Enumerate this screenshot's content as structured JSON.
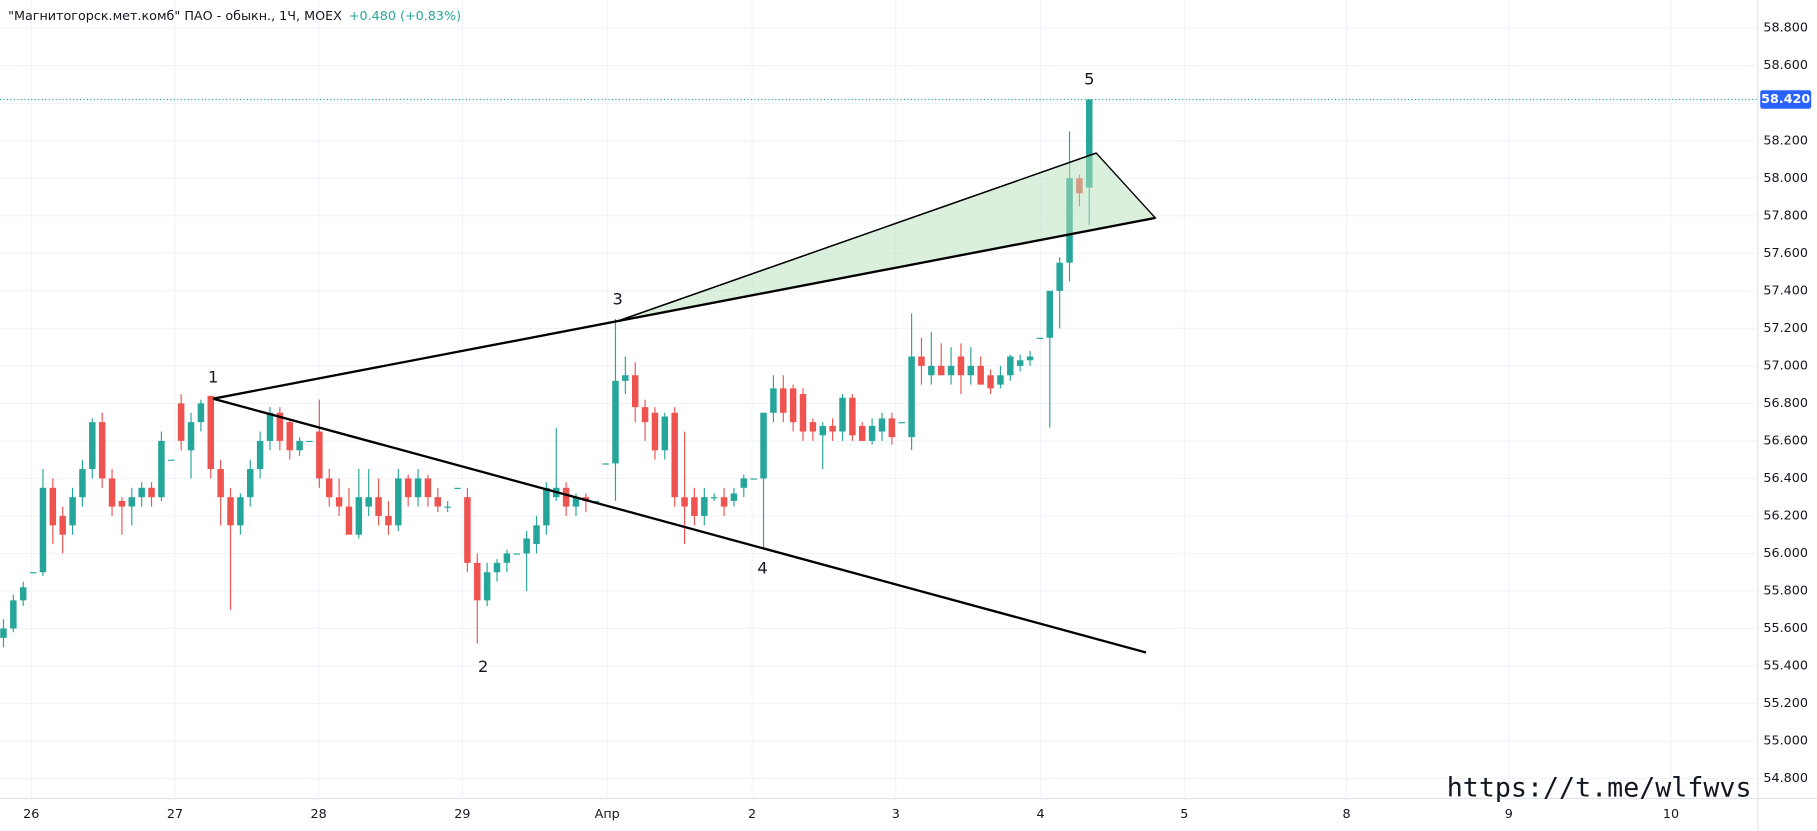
{
  "chart_data": {
    "type": "candlestick",
    "title": "\"Магнитогорск.мет.комб\" ПАО - обыкн., 1Ч, MOEX",
    "change_label": "+0.480 (+0.83%)",
    "last_price": {
      "value": 58.42,
      "label": "58.420"
    },
    "up_color": "#26a69a",
    "down_color": "#ef5350",
    "categories": [
      "26",
      "27",
      "28",
      "29",
      "Апр",
      "2",
      "3",
      "4",
      "5",
      "8",
      "9",
      "10"
    ],
    "wave_labels": [
      "1",
      "2",
      "3",
      "4",
      "5"
    ],
    "watermark": "https://t.me/wlfwvs",
    "ylim": [
      54.7,
      58.95
    ],
    "yticks": [
      {
        "value": 54.8,
        "label": "54.800"
      },
      {
        "value": 55.0,
        "label": "55.000"
      },
      {
        "value": 55.2,
        "label": "55.200"
      },
      {
        "value": 55.4,
        "label": "55.400"
      },
      {
        "value": 55.6,
        "label": "55.600"
      },
      {
        "value": 55.8,
        "label": "55.800"
      },
      {
        "value": 56.0,
        "label": "56.000"
      },
      {
        "value": 56.2,
        "label": "56.200"
      },
      {
        "value": 56.4,
        "label": "56.400"
      },
      {
        "value": 56.6,
        "label": "56.600"
      },
      {
        "value": 56.8,
        "label": "56.800"
      },
      {
        "value": 57.0,
        "label": "57.000"
      },
      {
        "value": 57.2,
        "label": "57.200"
      },
      {
        "value": 57.4,
        "label": "57.400"
      },
      {
        "value": 57.6,
        "label": "57.600"
      },
      {
        "value": 57.8,
        "label": "57.800"
      },
      {
        "value": 58.0,
        "label": "58.000"
      },
      {
        "value": 58.2,
        "label": "58.200"
      },
      {
        "value": 58.4,
        "label": "58.400"
      },
      {
        "value": 58.6,
        "label": "58.600"
      },
      {
        "value": 58.8,
        "label": "58.800"
      }
    ],
    "grid": true,
    "ohlc": [
      [
        55.55,
        55.65,
        55.5,
        55.6
      ],
      [
        55.6,
        55.78,
        55.58,
        55.75
      ],
      [
        55.75,
        55.85,
        55.72,
        55.82
      ],
      [
        55.9,
        55.9,
        55.9,
        55.9
      ],
      [
        55.9,
        56.45,
        55.88,
        56.35
      ],
      [
        56.35,
        56.4,
        56.05,
        56.15
      ],
      [
        56.2,
        56.25,
        56.0,
        56.1
      ],
      [
        56.15,
        56.35,
        56.1,
        56.3
      ],
      [
        56.3,
        56.5,
        56.25,
        56.45
      ],
      [
        56.45,
        56.72,
        56.4,
        56.7
      ],
      [
        56.7,
        56.75,
        56.35,
        56.4
      ],
      [
        56.4,
        56.45,
        56.2,
        56.25
      ],
      [
        56.28,
        56.3,
        56.1,
        56.25
      ],
      [
        56.25,
        56.35,
        56.15,
        56.3
      ],
      [
        56.3,
        56.38,
        56.25,
        56.35
      ],
      [
        56.35,
        56.38,
        56.25,
        56.3
      ],
      [
        56.3,
        56.65,
        56.28,
        56.6
      ],
      [
        56.5,
        56.5,
        56.5,
        56.5
      ],
      [
        56.8,
        56.85,
        56.55,
        56.6
      ],
      [
        56.55,
        56.75,
        56.4,
        56.7
      ],
      [
        56.7,
        56.82,
        56.65,
        56.8
      ],
      [
        56.84,
        56.84,
        56.4,
        56.45
      ],
      [
        56.45,
        56.5,
        56.15,
        56.3
      ],
      [
        56.3,
        56.35,
        55.7,
        56.15
      ],
      [
        56.15,
        56.32,
        56.1,
        56.3
      ],
      [
        56.3,
        56.5,
        56.25,
        56.45
      ],
      [
        56.45,
        56.65,
        56.4,
        56.6
      ],
      [
        56.6,
        56.78,
        56.55,
        56.75
      ],
      [
        56.75,
        56.78,
        56.55,
        56.6
      ],
      [
        56.7,
        56.72,
        56.5,
        56.55
      ],
      [
        56.55,
        56.62,
        56.52,
        56.6
      ],
      [
        56.6,
        56.6,
        56.6,
        56.6
      ],
      [
        56.65,
        56.82,
        56.35,
        56.4
      ],
      [
        56.4,
        56.45,
        56.25,
        56.3
      ],
      [
        56.3,
        56.4,
        56.2,
        56.25
      ],
      [
        56.25,
        56.35,
        56.1,
        56.1
      ],
      [
        56.1,
        56.45,
        56.08,
        56.3
      ],
      [
        56.25,
        56.45,
        56.2,
        56.3
      ],
      [
        56.3,
        56.4,
        56.15,
        56.2
      ],
      [
        56.2,
        56.28,
        56.1,
        56.15
      ],
      [
        56.15,
        56.45,
        56.12,
        56.4
      ],
      [
        56.4,
        56.42,
        56.25,
        56.3
      ],
      [
        56.3,
        56.45,
        56.25,
        56.4
      ],
      [
        56.4,
        56.42,
        56.25,
        56.3
      ],
      [
        56.3,
        56.35,
        56.22,
        56.25
      ],
      [
        56.25,
        56.28,
        56.22,
        56.25
      ],
      [
        56.35,
        56.35,
        56.35,
        56.35
      ],
      [
        56.3,
        56.35,
        55.9,
        55.95
      ],
      [
        55.95,
        56.0,
        55.52,
        55.75
      ],
      [
        55.75,
        55.95,
        55.72,
        55.9
      ],
      [
        55.9,
        55.97,
        55.85,
        55.95
      ],
      [
        55.95,
        56.02,
        55.9,
        56.0
      ],
      [
        56.0,
        56.0,
        56.0,
        56.0
      ],
      [
        56.0,
        56.12,
        55.8,
        56.08
      ],
      [
        56.05,
        56.2,
        56.0,
        56.15
      ],
      [
        56.15,
        56.38,
        56.1,
        56.35
      ],
      [
        56.3,
        56.67,
        56.28,
        56.35
      ],
      [
        56.35,
        56.38,
        56.2,
        56.25
      ],
      [
        56.25,
        56.32,
        56.2,
        56.3
      ],
      [
        56.3,
        56.32,
        56.22,
        56.28
      ],
      [
        56.28,
        56.28,
        56.28,
        56.28
      ],
      [
        56.48,
        56.48,
        56.48,
        56.48
      ],
      [
        56.48,
        57.25,
        56.28,
        56.92
      ],
      [
        56.92,
        57.05,
        56.85,
        56.95
      ],
      [
        56.95,
        57.02,
        56.7,
        56.78
      ],
      [
        56.78,
        56.82,
        56.6,
        56.7
      ],
      [
        56.75,
        56.78,
        56.5,
        56.55
      ],
      [
        56.55,
        56.75,
        56.5,
        56.73
      ],
      [
        56.75,
        56.78,
        56.25,
        56.3
      ],
      [
        56.3,
        56.65,
        56.05,
        56.25
      ],
      [
        56.3,
        56.35,
        56.15,
        56.2
      ],
      [
        56.2,
        56.35,
        56.15,
        56.3
      ],
      [
        56.3,
        56.32,
        56.28,
        56.3
      ],
      [
        56.3,
        56.35,
        56.2,
        56.25
      ],
      [
        56.28,
        56.35,
        56.25,
        56.32
      ],
      [
        56.35,
        56.42,
        56.3,
        56.4
      ],
      [
        56.4,
        56.4,
        56.4,
        56.4
      ],
      [
        56.4,
        56.75,
        56.03,
        56.75
      ],
      [
        56.75,
        56.95,
        56.7,
        56.88
      ],
      [
        56.88,
        56.95,
        56.7,
        56.75
      ],
      [
        56.88,
        56.9,
        56.65,
        56.7
      ],
      [
        56.85,
        56.88,
        56.6,
        56.65
      ],
      [
        56.7,
        56.72,
        56.6,
        56.65
      ],
      [
        56.63,
        56.7,
        56.45,
        56.68
      ],
      [
        56.68,
        56.72,
        56.6,
        56.65
      ],
      [
        56.65,
        56.85,
        56.6,
        56.83
      ],
      [
        56.83,
        56.85,
        56.6,
        56.63
      ],
      [
        56.68,
        56.7,
        56.6,
        56.6
      ],
      [
        56.6,
        56.72,
        56.58,
        56.68
      ],
      [
        56.65,
        56.75,
        56.6,
        56.72
      ],
      [
        56.72,
        56.75,
        56.58,
        56.62
      ],
      [
        56.7,
        56.7,
        56.7,
        56.7
      ],
      [
        56.62,
        57.28,
        56.55,
        57.05
      ],
      [
        57.05,
        57.15,
        56.9,
        57.0
      ],
      [
        56.95,
        57.18,
        56.9,
        57.0
      ],
      [
        57.0,
        57.12,
        56.95,
        56.95
      ],
      [
        56.95,
        57.1,
        56.9,
        57.0
      ],
      [
        57.05,
        57.12,
        56.85,
        56.95
      ],
      [
        56.95,
        57.1,
        56.9,
        57.0
      ],
      [
        57.0,
        57.05,
        56.9,
        56.9
      ],
      [
        56.95,
        56.98,
        56.85,
        56.88
      ],
      [
        56.9,
        57.0,
        56.88,
        56.95
      ],
      [
        56.95,
        57.06,
        56.92,
        57.05
      ],
      [
        57.0,
        57.06,
        56.97,
        57.03
      ],
      [
        57.03,
        57.08,
        57.0,
        57.05
      ],
      [
        57.15,
        57.15,
        57.15,
        57.15
      ],
      [
        57.15,
        57.4,
        56.67,
        57.4
      ],
      [
        57.4,
        57.58,
        57.2,
        57.55
      ],
      [
        57.55,
        58.25,
        57.45,
        58.0
      ],
      [
        58.0,
        58.02,
        57.85,
        57.92
      ],
      [
        57.95,
        58.42,
        57.75,
        58.42
      ]
    ]
  }
}
